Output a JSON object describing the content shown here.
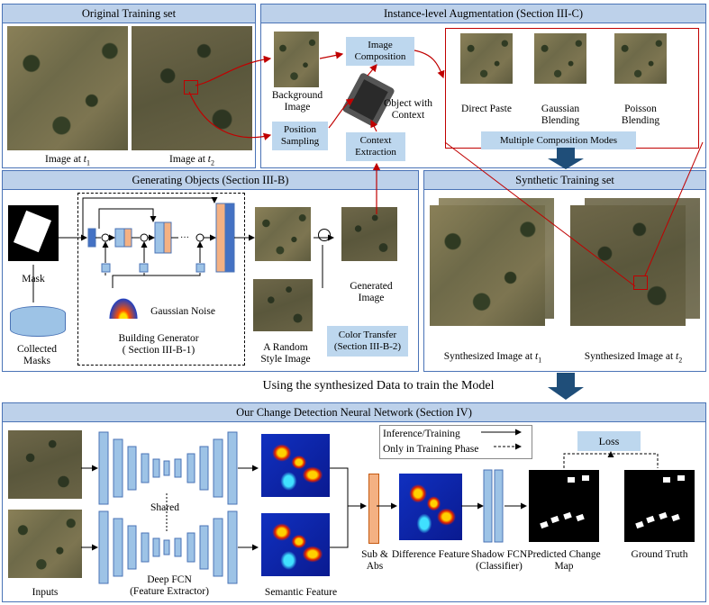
{
  "panels": {
    "original": "Original Training set",
    "augment": "Instance-level Augmentation (Section III-C)",
    "generating": "Generating Objects (Section III-B)",
    "synthetic": "Synthetic Training set",
    "network": "Our Change Detection Neural Network (Section IV)"
  },
  "original": {
    "img1": "Image at ",
    "img2": "Image at ",
    "t1": "t",
    "sub1": "1",
    "sub2": "2"
  },
  "augment": {
    "background": "Background Image",
    "composition": "Image Composition",
    "object": "Object with Context",
    "position": "Position Sampling",
    "context": "Context Extraction",
    "direct": "Direct Paste",
    "gaussian": "Gaussian Blending",
    "poisson": "Poisson Blending",
    "modes": "Multiple Composition Modes"
  },
  "generating": {
    "mask": "Mask",
    "collected": "Collected Masks",
    "noise": "Gaussian Noise",
    "generator": "Building Generator",
    "generator_sec": "( Section III-B-1)",
    "random": "A Random Style Image",
    "generated": "Generated Image",
    "transfer": "Color Transfer",
    "transfer_sec": "(Section III-B-2)"
  },
  "synthetic": {
    "img1": "Synthesized Image at ",
    "img2": "Synthesized Image at "
  },
  "middle_caption": "Using the synthesized Data to train the Model",
  "network": {
    "inputs": "Inputs",
    "shared": "Shared",
    "fcn": "Deep FCN",
    "fcn_sub": "(Feature Extractor)",
    "semantic": "Semantic Feature",
    "subabs": "Sub & Abs",
    "difference": "Difference Feature",
    "shadow": "Shadow FCN",
    "shadow_sub": "(Classifier)",
    "predicted": "Predicted Change Map",
    "truth": "Ground Truth",
    "loss": "Loss",
    "legend1": "Inference/Training",
    "legend2": "Only in Training Phase"
  },
  "colors": {
    "panel_border": "#4a73b6",
    "header": "#bdd1ea",
    "box": "#bdd7ee",
    "layer": "#9dc3e6",
    "orange": "#f4b183",
    "red": "#c00000",
    "arrow_big": "#1f4e79"
  }
}
